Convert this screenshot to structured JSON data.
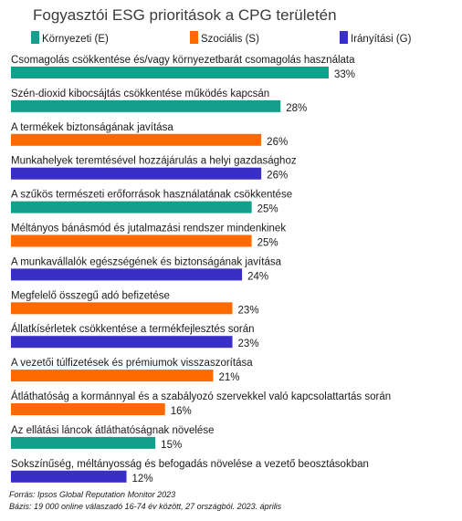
{
  "chart_data": {
    "type": "bar",
    "orientation": "horizontal",
    "title": "Fogyasztói ESG prioritások a CPG területén",
    "legend": [
      {
        "key": "E",
        "label": "Környezeti (E)",
        "color": "#12a08c"
      },
      {
        "key": "S",
        "label": "Szociális (S)",
        "color": "#ff6a00"
      },
      {
        "key": "G",
        "label": "Irányítási (G)",
        "color": "#3a2fc4"
      }
    ],
    "categories": [
      "Csomagolás csökkentése és/vagy környezetbarát csomagolás használata",
      "Szén-dioxid kibocsájtás csökkentése működés kapcsán",
      "A termékek biztonságának javítása",
      "Munkahelyek teremtésével hozzájárulás a helyi gazdasághoz",
      "A szűkös természeti erőforrások használatának csökkentése",
      "Méltányos bánásmód és jutalmazási rendszer mindenkinek",
      "A munkavállalók egészségének és biztonságának javítása",
      "Megfelelő összegű adó befizetése",
      "Állatkísérletek csökkentése a termékfejlesztés során",
      "A vezetői túlfizetések és prémiumok visszaszorítása",
      "Átláthatóság a kormánnyal és a szabályozó szervekkel való kapcsolattartás során",
      "Az ellátási láncok átláthatóságnak növelése",
      "Sokszínűség, méltányosság és befogadás növelése a vezető beosztásokban"
    ],
    "values": [
      33,
      28,
      26,
      26,
      25,
      25,
      24,
      23,
      23,
      21,
      16,
      15,
      12
    ],
    "value_labels": [
      "33%",
      "28%",
      "26%",
      "26%",
      "25%",
      "25%",
      "24%",
      "23%",
      "23%",
      "21%",
      "16%",
      "15%",
      "12%"
    ],
    "groups": [
      "E",
      "E",
      "S",
      "G",
      "E",
      "S",
      "G",
      "S",
      "G",
      "S",
      "S",
      "E",
      "G"
    ],
    "xlim": [
      0,
      33
    ]
  },
  "footnotes": {
    "source": "Forrás: Ipsos Global Reputation Monitor 2023",
    "base": "Bázis: 19 000 online válaszadó 16-74 év között, 27 országból. 2023. április"
  }
}
